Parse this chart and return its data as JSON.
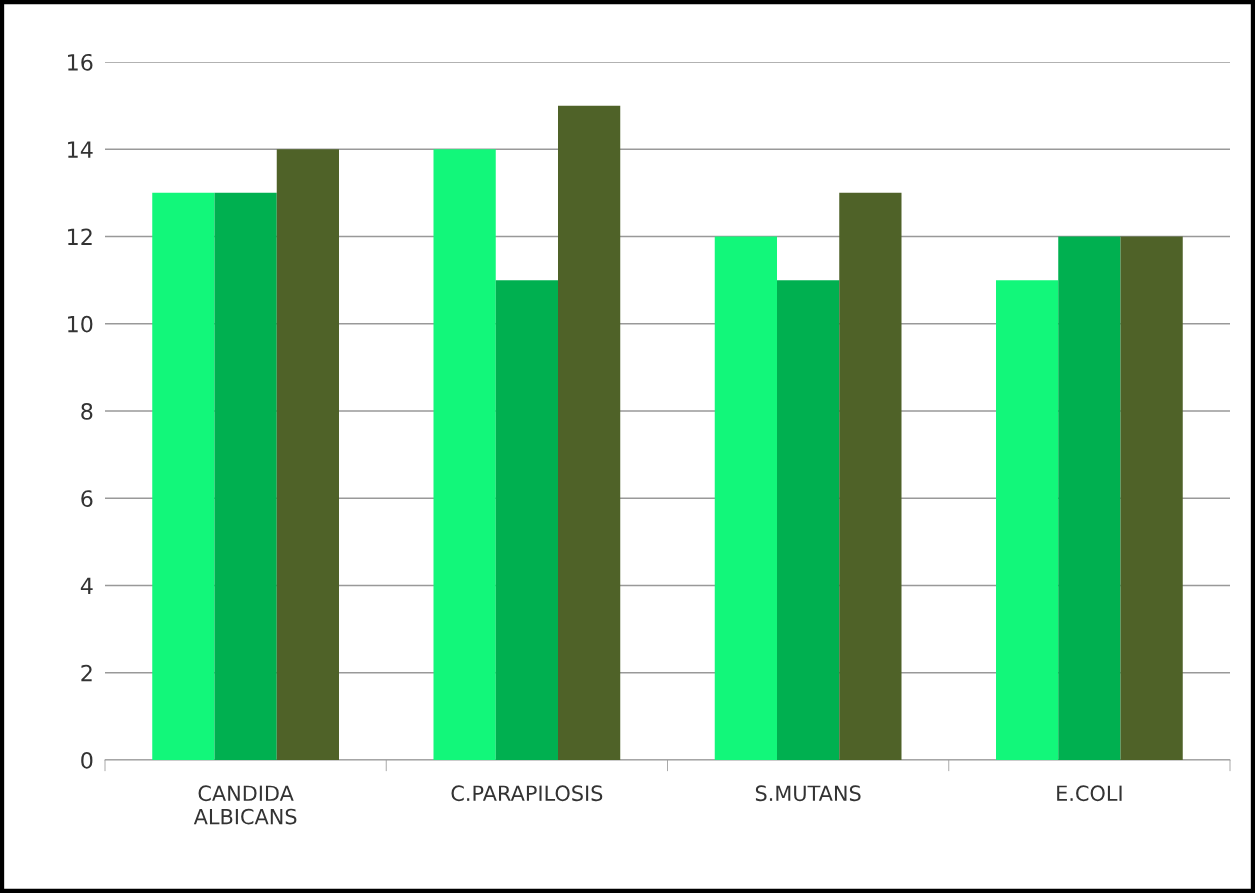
{
  "chart_data": {
    "type": "bar",
    "categories": [
      "CANDIDA\nALBICANS",
      "C.PARAPILOSIS",
      "S.MUTANS",
      "E.COLI"
    ],
    "series": [
      {
        "color": "#12f77a",
        "values": [
          13,
          14,
          12,
          11
        ]
      },
      {
        "color": "#00b050",
        "values": [
          13,
          11,
          11,
          12
        ]
      },
      {
        "color": "#4f6228",
        "values": [
          14,
          15,
          13,
          12
        ]
      }
    ],
    "ylim": [
      0,
      16
    ],
    "yticks": [
      0,
      2,
      4,
      6,
      8,
      10,
      12,
      14,
      16
    ],
    "grid": "y"
  }
}
